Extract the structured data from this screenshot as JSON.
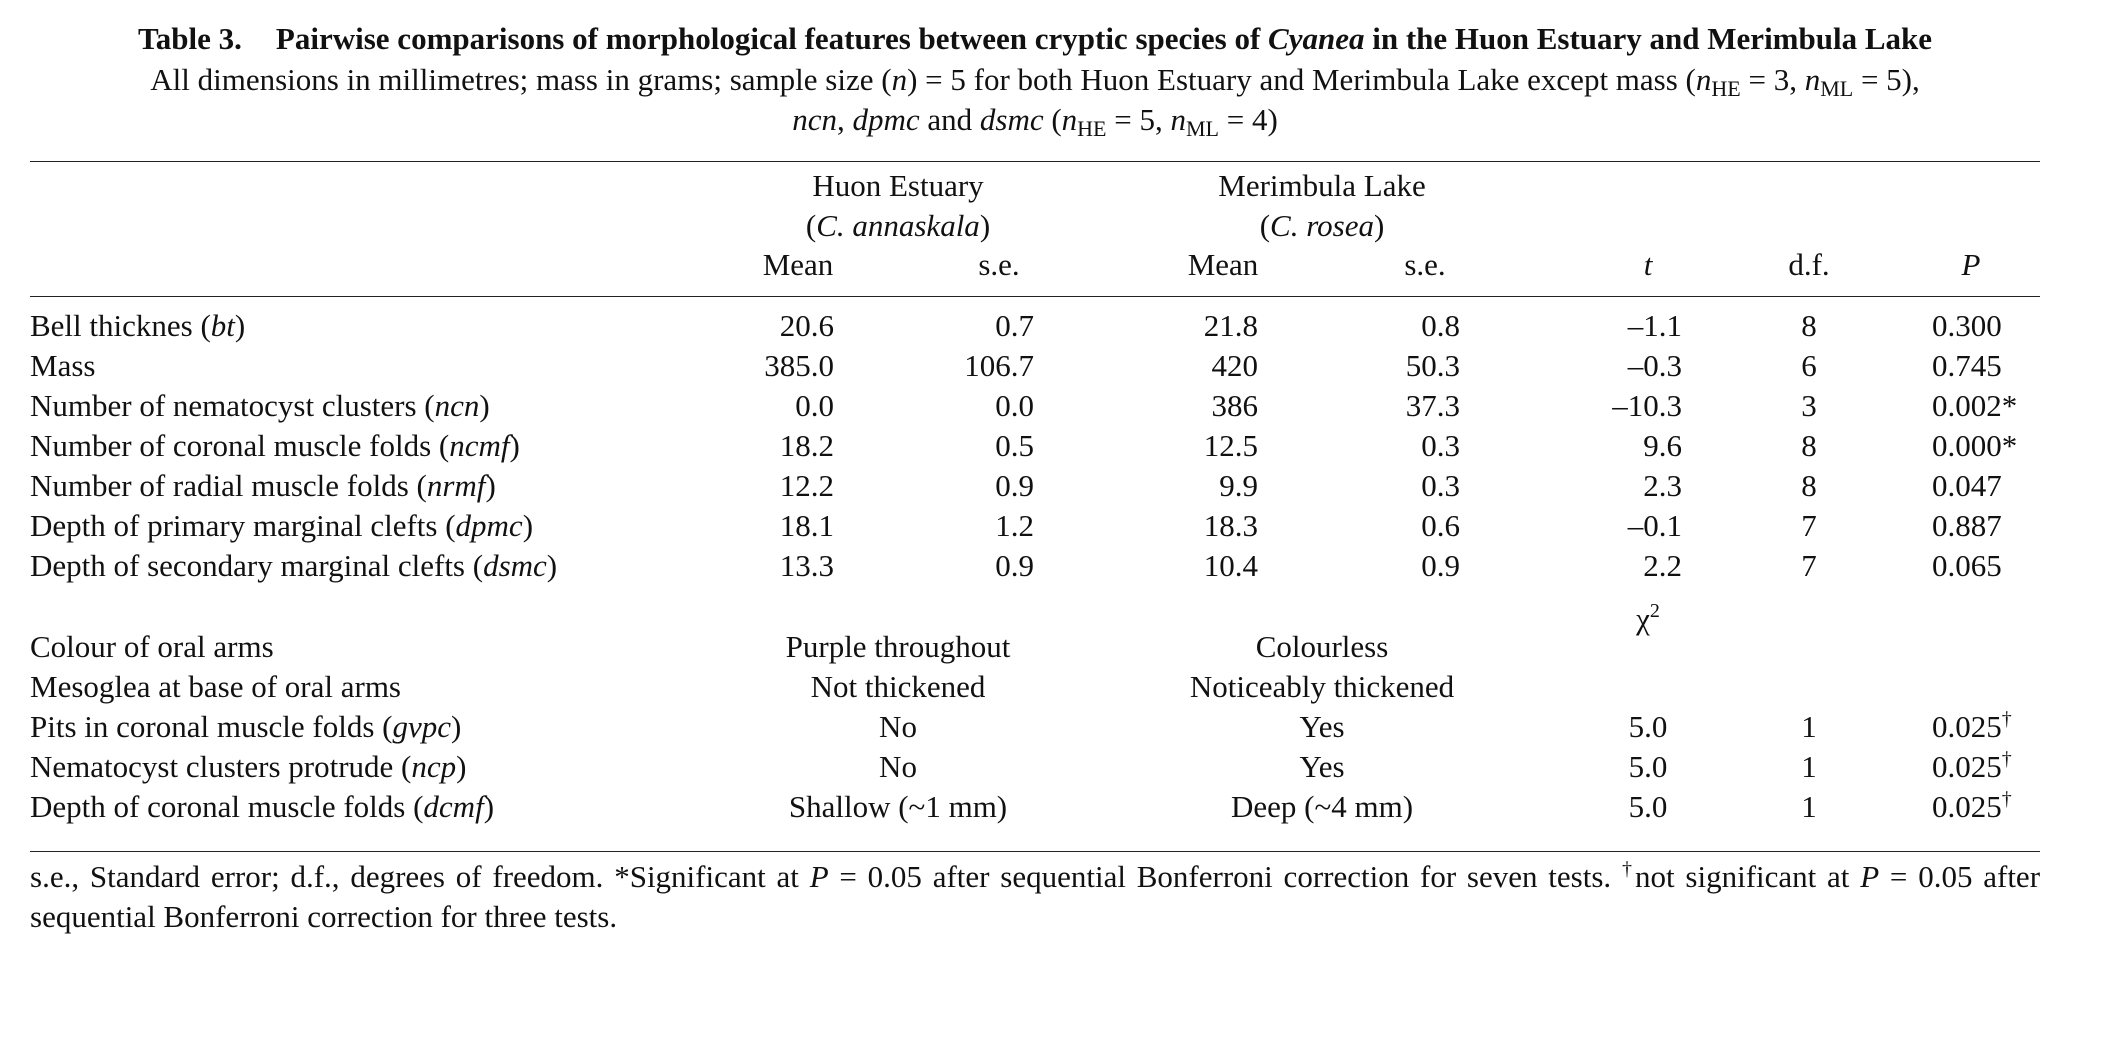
{
  "table": {
    "label": "Table 3.",
    "title_pre": "Pairwise comparisons of morphological features between cryptic species of ",
    "title_genus": "Cyanea",
    "title_post": " in the Huon Estuary and Merimbula Lake",
    "caption": {
      "a": "All dimensions in millimetres; mass in grams; sample size (",
      "n": "n",
      "b": ") = 5 for both Huon Estuary and Merimbula Lake except mass (",
      "n1": "n",
      "sub1": "HE",
      "c": " = 3, ",
      "n2": "n",
      "sub2": "ML",
      "d": " = 5),",
      "v1": "ncn",
      "e": ", ",
      "v2": "dpmc",
      "f": " and ",
      "v3": "dsmc",
      "g": " (",
      "n3": "n",
      "sub3": "HE",
      "h": " = 5, ",
      "n4": "n",
      "sub4": "ML",
      "i": " = 4)"
    },
    "header": {
      "site1": "Huon Estuary",
      "sp1_open": "(",
      "sp1": "C. annaskala",
      "sp1_close": ")",
      "site2": "Merimbula Lake",
      "sp2_open": "(",
      "sp2": "C. rosea",
      "sp2_close": ")",
      "mean1": "Mean",
      "se1": "s.e.",
      "mean2": "Mean",
      "se2": "s.e.",
      "t": "t",
      "df": "d.f.",
      "p": "P"
    },
    "numeric_rows": [
      {
        "label": "Bell thicknes (",
        "abbr": "bt",
        "close": ")",
        "mean1": "20.6",
        "se1": "0.7",
        "mean2": "21.8",
        "se2": "0.8",
        "t": "–1.1",
        "df": "8",
        "p": "0.300"
      },
      {
        "label": "Mass",
        "abbr": "",
        "close": "",
        "mean1": "385.0",
        "se1": "106.7",
        "mean2": "420",
        "se2": "50.3",
        "t": "–0.3",
        "df": "6",
        "p": "0.745"
      },
      {
        "label": "Number of nematocyst clusters (",
        "abbr": "ncn",
        "close": ")",
        "mean1": "0.0",
        "se1": "0.0",
        "mean2": "386",
        "se2": "37.3",
        "t": "–10.3",
        "df": "3",
        "p": "0.002*"
      },
      {
        "label": "Number of coronal muscle folds (",
        "abbr": "ncmf",
        "close": ")",
        "mean1": "18.2",
        "se1": "0.5",
        "mean2": "12.5",
        "se2": "0.3",
        "t": "9.6",
        "df": "8",
        "p": "0.000*"
      },
      {
        "label": "Number of radial muscle folds (",
        "abbr": "nrmf",
        "close": ")",
        "mean1": "12.2",
        "se1": "0.9",
        "mean2": "9.9",
        "se2": "0.3",
        "t": "2.3",
        "df": "8",
        "p": "0.047"
      },
      {
        "label": "Depth of primary marginal clefts (",
        "abbr": "dpmc",
        "close": ")",
        "mean1": "18.1",
        "se1": "1.2",
        "mean2": "18.3",
        "se2": "0.6",
        "t": "–0.1",
        "df": "7",
        "p": "0.887"
      },
      {
        "label": "Depth of secondary marginal clefts (",
        "abbr": "dsmc",
        "close": ")",
        "mean1": "13.3",
        "se1": "0.9",
        "mean2": "10.4",
        "se2": "0.9",
        "t": "2.2",
        "df": "7",
        "p": "0.065"
      }
    ],
    "chi_label": "χ",
    "chi_sup": "2",
    "categorical_rows": [
      {
        "label": "Colour of oral arms",
        "abbr": "",
        "close": "",
        "huon": "Purple throughout",
        "merimbula": "Colourless",
        "chi2": "",
        "df": "",
        "p": "",
        "mark": ""
      },
      {
        "label": "Mesoglea at base of oral arms",
        "abbr": "",
        "close": "",
        "huon": "Not thickened",
        "merimbula": "Noticeably thickened",
        "chi2": "",
        "df": "",
        "p": "",
        "mark": ""
      },
      {
        "label": "Pits in coronal muscle folds (",
        "abbr": "gvpc",
        "close": ")",
        "huon": "No",
        "merimbula": "Yes",
        "chi2": "5.0",
        "df": "1",
        "p": "0.025",
        "mark": "†"
      },
      {
        "label": "Nematocyst clusters protrude (",
        "abbr": "ncp",
        "close": ")",
        "huon": "No",
        "merimbula": "Yes",
        "chi2": "5.0",
        "df": "1",
        "p": "0.025",
        "mark": "†"
      },
      {
        "label": "Depth of coronal muscle folds (",
        "abbr": "dcmf",
        "close": ")",
        "huon": "Shallow (~1 mm)",
        "merimbula": "Deep (~4 mm)",
        "chi2": "5.0",
        "df": "1",
        "p": "0.025",
        "mark": "†"
      }
    ],
    "footnote": {
      "a": "s.e., Standard error; d.f., degrees of freedom. *Significant at ",
      "p1": "P",
      "b": " = 0.05 after sequential Bonferroni correction for seven tests. ",
      "dagger": "†",
      "c": "not significant at ",
      "p2": "P",
      "d": " = 0.05 after sequential Bonferroni correction for three tests."
    }
  }
}
